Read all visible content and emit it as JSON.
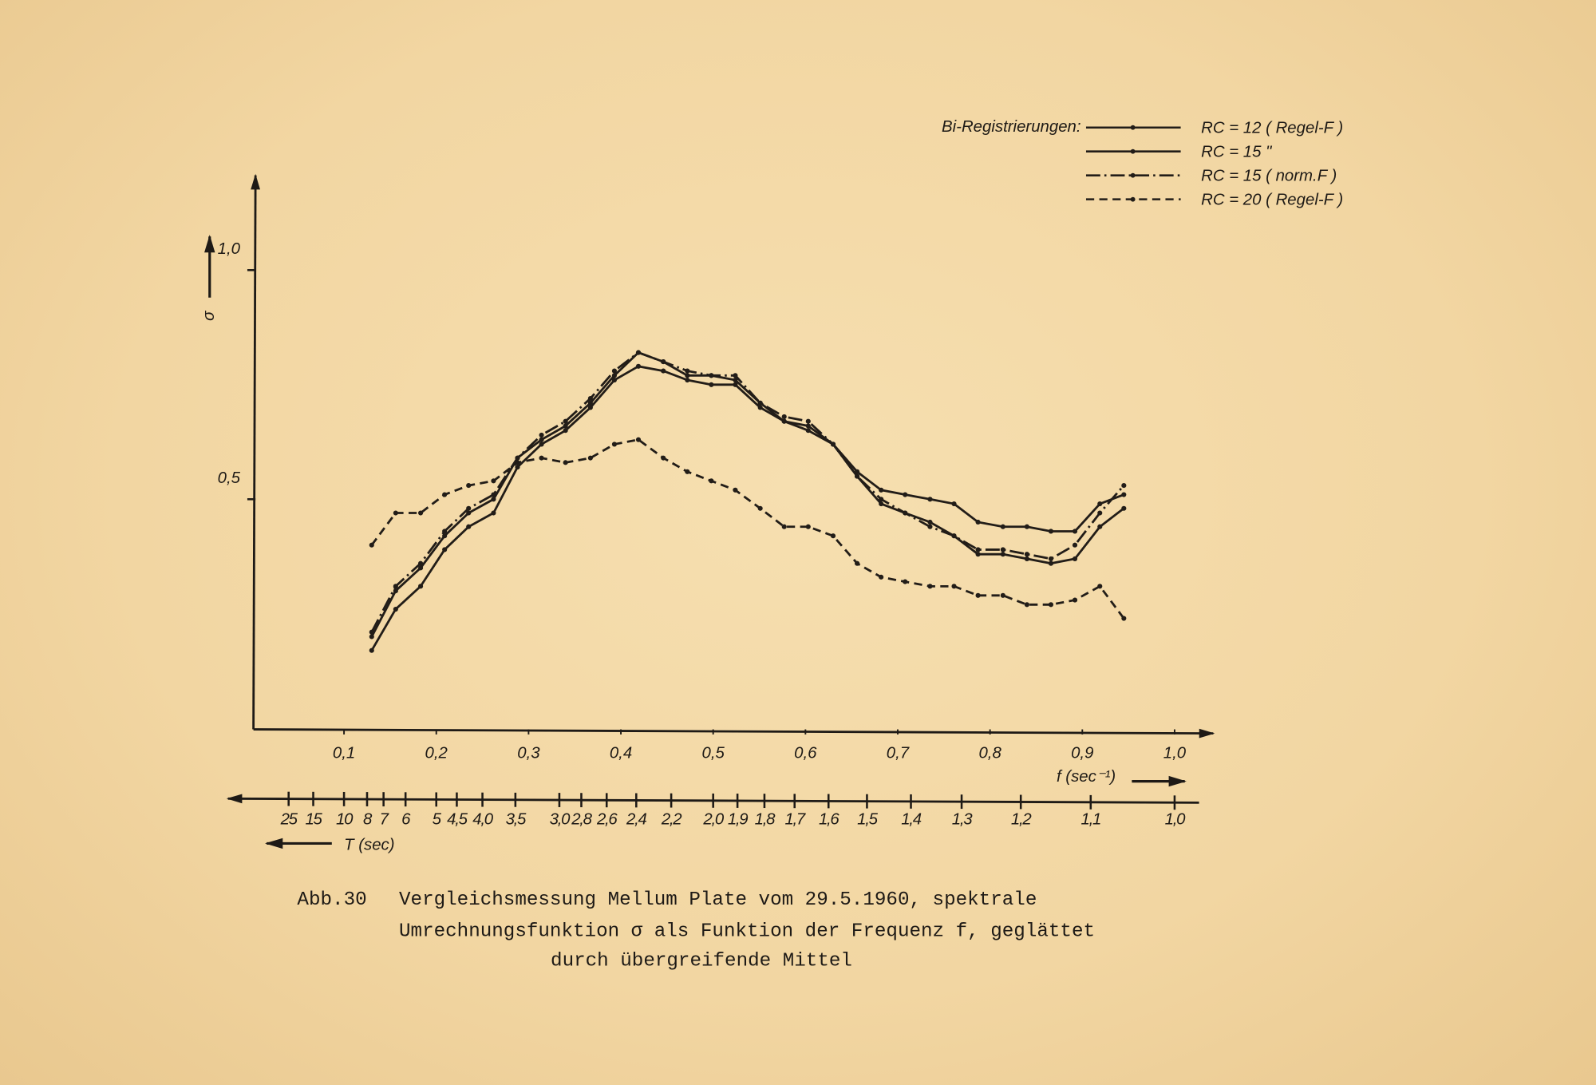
{
  "chart_data": {
    "type": "line",
    "legend_title": "Bi-Registrierungen:",
    "legend": "upper right",
    "x_label": "f (sec⁻¹)",
    "y_label": "σ",
    "x2_label": "T (sec)",
    "caption": [
      "Abb.30",
      "Vergleichsmessung Mellum Plate vom 29.5.1960, spektrale",
      "Umrechnungsfunktion σ als Funktion der Frequenz f, geglättet",
      "durch übergreifende Mittel"
    ],
    "xlim": [
      0,
      1.04
    ],
    "ylim": [
      0,
      1.2
    ],
    "xticks": [
      {
        "value": 0.1,
        "label": "0,1"
      },
      {
        "value": 0.2,
        "label": "0,2"
      },
      {
        "value": 0.3,
        "label": "0,3"
      },
      {
        "value": 0.4,
        "label": "0,4"
      },
      {
        "value": 0.5,
        "label": "0,5"
      },
      {
        "value": 0.6,
        "label": "0,6"
      },
      {
        "value": 0.7,
        "label": "0,7"
      },
      {
        "value": 0.8,
        "label": "0,8"
      },
      {
        "value": 0.9,
        "label": "0,9"
      },
      {
        "value": 1.0,
        "label": "1,0"
      }
    ],
    "yticks": [
      {
        "value": 0.5,
        "label": "0,5"
      },
      {
        "value": 1.0,
        "label": "1,0"
      }
    ],
    "period_ticks": [
      25,
      15,
      10,
      8,
      7,
      6,
      5,
      {
        "value": 4.5,
        "label": "4,5"
      },
      {
        "value": 4.0,
        "label": "4,0"
      },
      {
        "value": 3.5,
        "label": "3,5"
      },
      {
        "value": 3.0,
        "label": "3,0"
      },
      {
        "value": 2.8,
        "label": "2,8"
      },
      {
        "value": 2.6,
        "label": "2,6"
      },
      {
        "value": 2.4,
        "label": "2,4"
      },
      {
        "value": 2.2,
        "label": "2,2"
      },
      {
        "value": 2.0,
        "label": "2,0"
      },
      {
        "value": 1.9,
        "label": "1,9"
      },
      {
        "value": 1.8,
        "label": "1,8"
      },
      {
        "value": 1.7,
        "label": "1,7"
      },
      {
        "value": 1.6,
        "label": "1,6"
      },
      {
        "value": 1.5,
        "label": "1,5"
      },
      {
        "value": 1.4,
        "label": "1,4"
      },
      {
        "value": 1.3,
        "label": "1,3"
      },
      {
        "value": 1.2,
        "label": "1,2"
      },
      {
        "value": 1.1,
        "label": "1,1"
      },
      {
        "value": 1.0,
        "label": "1,0"
      }
    ],
    "x": [
      0.13,
      0.156,
      0.183,
      0.209,
      0.235,
      0.262,
      0.288,
      0.314,
      0.34,
      0.367,
      0.393,
      0.419,
      0.446,
      0.472,
      0.498,
      0.524,
      0.551,
      0.577,
      0.603,
      0.63,
      0.656,
      0.682,
      0.708,
      0.735,
      0.761,
      0.787,
      0.814,
      0.84,
      0.866,
      0.892,
      0.919,
      0.945
    ],
    "series": [
      {
        "name": "RC = 12  ( Regel-F )",
        "color": "#221d18",
        "style": "solid",
        "values": [
          0.17,
          0.26,
          0.31,
          0.39,
          0.44,
          0.47,
          0.57,
          0.62,
          0.65,
          0.7,
          0.76,
          0.79,
          0.78,
          0.76,
          0.75,
          0.75,
          0.7,
          0.67,
          0.65,
          0.62,
          0.56,
          0.52,
          0.51,
          0.5,
          0.49,
          0.45,
          0.44,
          0.44,
          0.43,
          0.43,
          0.49,
          0.51
        ]
      },
      {
        "name": "RC = 15          \"",
        "color": "#221d18",
        "style": "solid",
        "values": [
          0.2,
          0.3,
          0.35,
          0.42,
          0.47,
          0.5,
          0.59,
          0.63,
          0.66,
          0.71,
          0.77,
          0.82,
          0.8,
          0.77,
          0.77,
          0.76,
          0.71,
          0.67,
          0.66,
          0.62,
          0.55,
          0.49,
          0.47,
          0.45,
          0.42,
          0.38,
          0.38,
          0.37,
          0.36,
          0.37,
          0.44,
          0.48
        ]
      },
      {
        "name": "RC = 15  ( norm.F )",
        "color": "#221d18",
        "style": "dashdot",
        "values": [
          0.21,
          0.31,
          0.36,
          0.43,
          0.48,
          0.51,
          0.59,
          0.64,
          0.67,
          0.72,
          0.78,
          0.82,
          0.8,
          0.78,
          0.77,
          0.77,
          0.71,
          0.68,
          0.67,
          0.62,
          0.55,
          0.5,
          0.47,
          0.44,
          0.42,
          0.39,
          0.39,
          0.38,
          0.37,
          0.4,
          0.47,
          0.53
        ]
      },
      {
        "name": "RC = 20  ( Regel-F )",
        "color": "#221d18",
        "style": "dashed",
        "values": [
          0.4,
          0.47,
          0.47,
          0.51,
          0.53,
          0.54,
          0.58,
          0.59,
          0.58,
          0.59,
          0.62,
          0.63,
          0.59,
          0.56,
          0.54,
          0.52,
          0.48,
          0.44,
          0.44,
          0.42,
          0.36,
          0.33,
          0.32,
          0.31,
          0.31,
          0.29,
          0.29,
          0.27,
          0.27,
          0.28,
          0.31,
          0.24
        ]
      }
    ]
  }
}
